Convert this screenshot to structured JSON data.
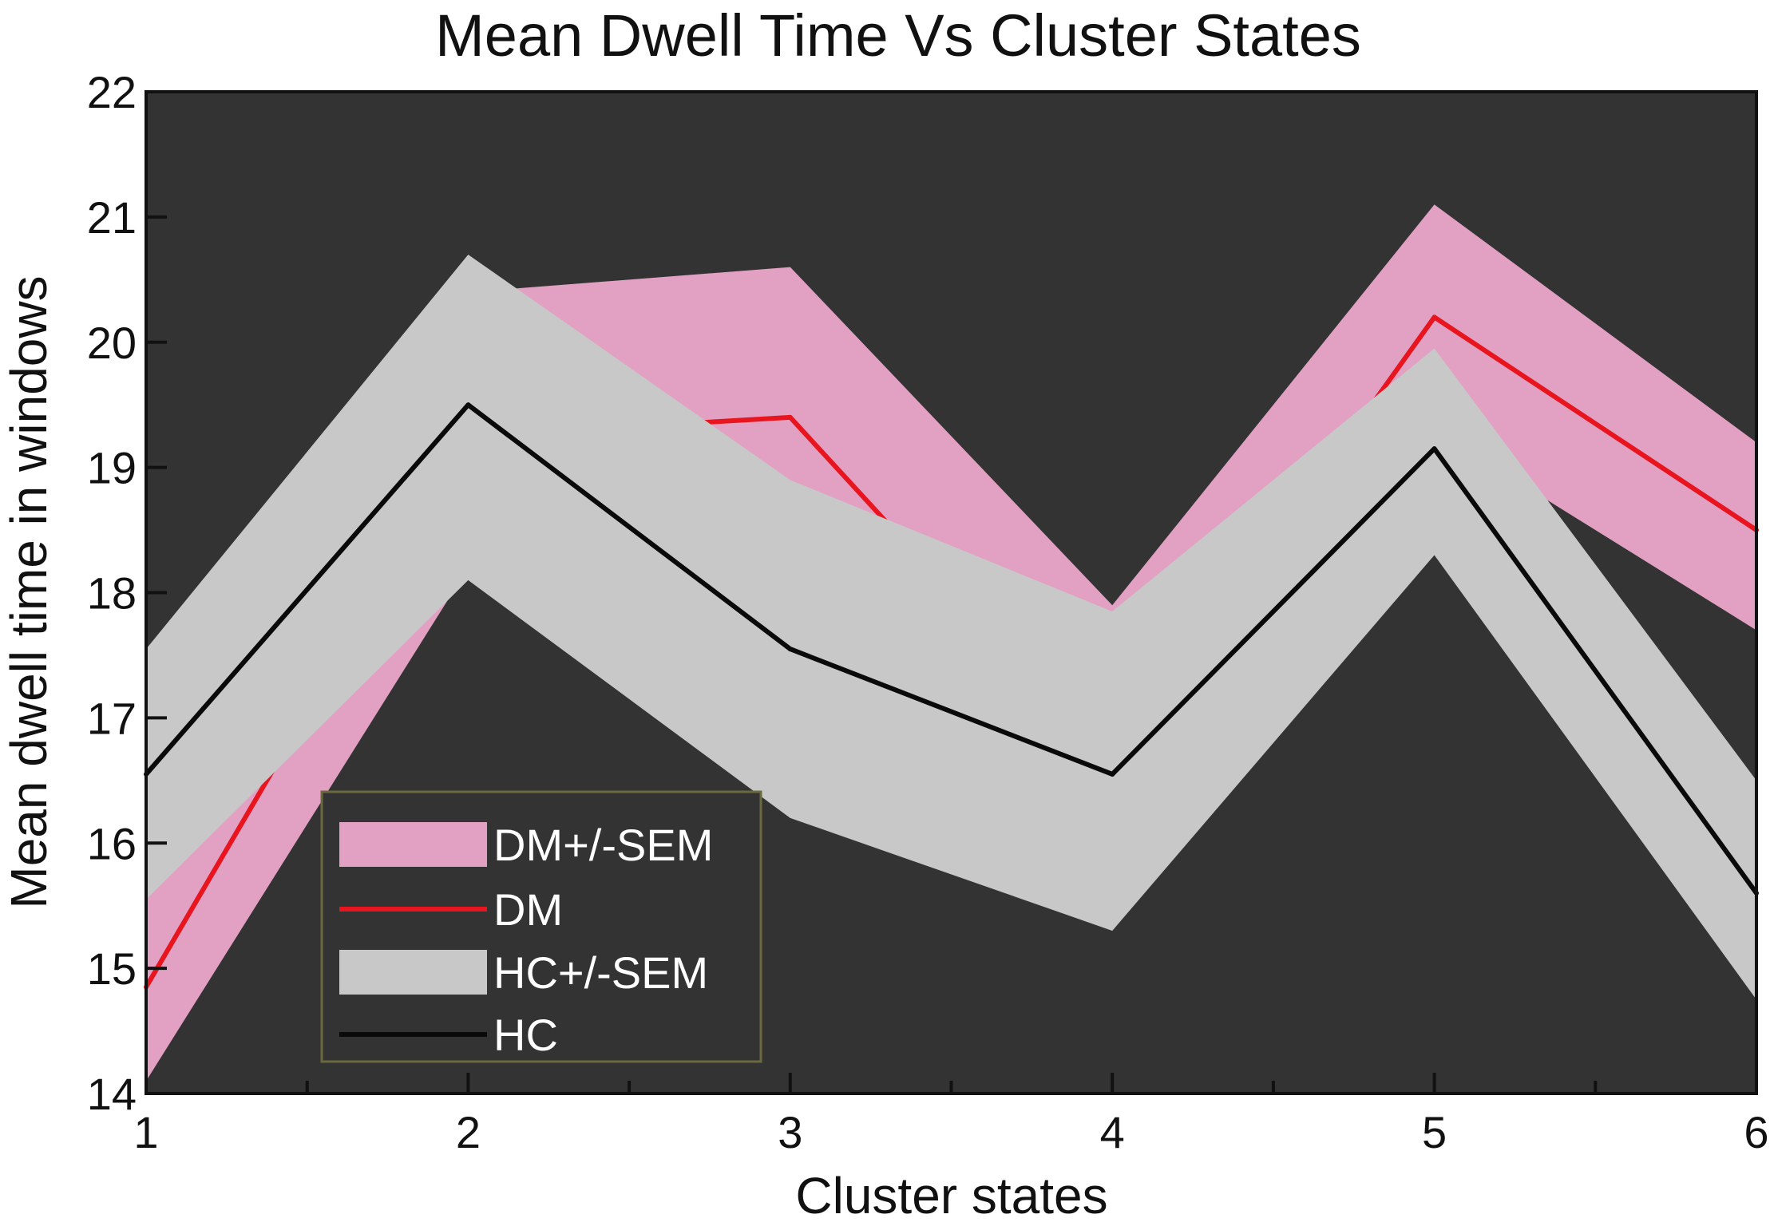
{
  "chart_data": {
    "type": "line",
    "title": "Mean Dwell Time Vs Cluster States",
    "xlabel": "Cluster states",
    "ylabel": "Mean dwell time in windows",
    "xlim": [
      1,
      6
    ],
    "ylim": [
      14,
      22
    ],
    "x": [
      1,
      2,
      3,
      4,
      5,
      6
    ],
    "xticks": [
      "1",
      "2",
      "3",
      "4",
      "5",
      "6"
    ],
    "yticks": [
      "14",
      "15",
      "16",
      "17",
      "18",
      "19",
      "20",
      "21",
      "22"
    ],
    "grid": false,
    "legend_position": "lower-left",
    "plot_background": "#333333",
    "series": [
      {
        "name": "DM+/-SEM",
        "kind": "band",
        "color": "#e2a0c2",
        "upper": [
          15.6,
          20.4,
          20.6,
          17.9,
          21.1,
          19.2
        ],
        "lower": [
          14.1,
          18.2,
          18.8,
          16.6,
          19.3,
          17.7
        ]
      },
      {
        "name": "DM",
        "kind": "line",
        "color": "#e8141e",
        "values": [
          14.85,
          19.25,
          19.4,
          16.6,
          20.2,
          18.5
        ]
      },
      {
        "name": "HC+/-SEM",
        "kind": "band",
        "color": "#c8c8c8",
        "upper": [
          17.55,
          20.7,
          18.9,
          17.85,
          19.95,
          16.5
        ],
        "lower": [
          15.55,
          18.1,
          16.2,
          15.3,
          18.3,
          14.75
        ]
      },
      {
        "name": "HC",
        "kind": "line",
        "color": "#0a0a0a",
        "values": [
          16.55,
          19.5,
          17.55,
          16.55,
          19.15,
          15.6
        ]
      }
    ],
    "legend_entries": [
      "DM+/-SEM",
      "DM",
      "HC+/-SEM",
      "HC"
    ]
  }
}
